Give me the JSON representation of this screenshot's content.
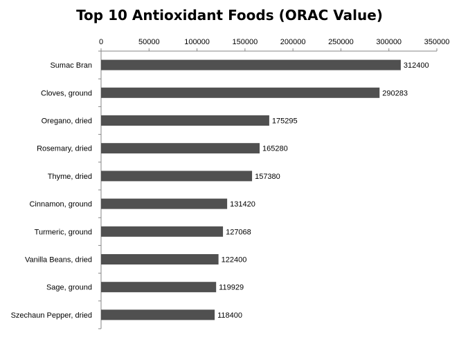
{
  "chart_data": {
    "type": "bar",
    "orientation": "horizontal",
    "title": "Top 10 Antioxidant Foods (ORAC Value)",
    "xaxis_position": "top",
    "xlim": [
      0,
      350000
    ],
    "xticks": [
      "0",
      "50000",
      "100000",
      "150000",
      "200000",
      "250000",
      "300000",
      "350000"
    ],
    "grid": false,
    "legend": "none",
    "bar_color": "#505050",
    "categories": [
      "Sumac Bran",
      "Cloves, ground",
      "Oregano, dried",
      "Rosemary, dried",
      "Thyme, dried",
      "Cinnamon, ground",
      "Turmeric, ground",
      "Vanilla Beans, dried",
      "Sage, ground",
      "Szechaun Pepper, dried"
    ],
    "values": [
      312400,
      290283,
      175295,
      165280,
      157380,
      131420,
      127068,
      122400,
      119929,
      118400
    ]
  }
}
